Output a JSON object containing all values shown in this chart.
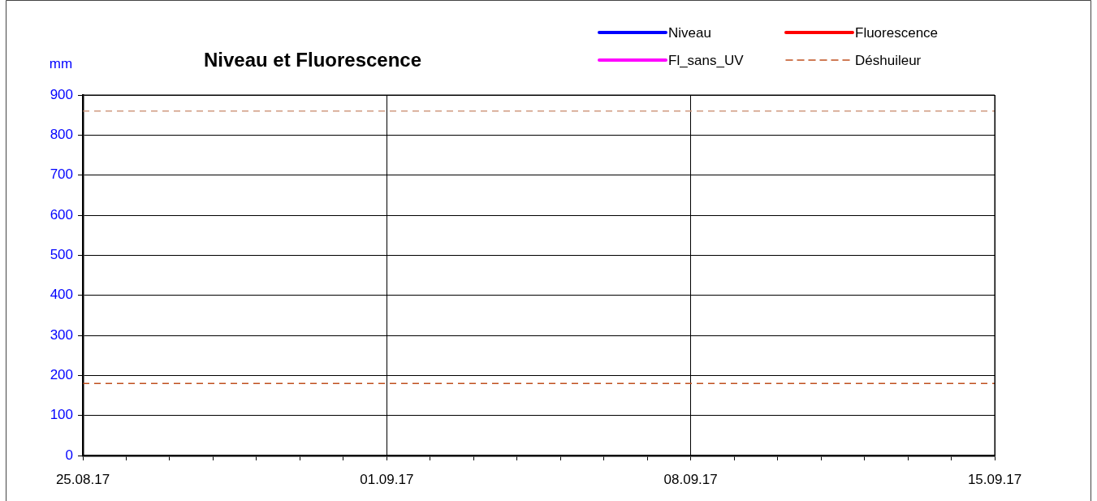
{
  "chart_data": {
    "type": "line",
    "title": "Niveau et Fluorescence",
    "ylabel": "mm",
    "x": [
      "--08-25",
      "--09-15"
    ],
    "series": [
      {
        "name": "Niveau",
        "color": "#0000ff",
        "values": [
          null,
          null
        ]
      },
      {
        "name": "Fluorescence",
        "color": "#ff0000",
        "values": [
          null,
          null
        ]
      },
      {
        "name": "Fl_sans_UV",
        "color": "#ff00ff",
        "values": [
          null,
          null
        ]
      },
      {
        "name": "Déshuileur",
        "color": "#c0501f",
        "line_style": "dashed",
        "values": [
          180,
          180
        ]
      }
    ],
    "ref_lines": [
      {
        "axis": "y",
        "value": 860,
        "color": "#d09a80",
        "line_style": "dashed"
      }
    ],
    "xlim": [
      "--08-25",
      "--09-15"
    ],
    "xticks": [
      {
        "value": "--08-25",
        "label": "25.08.17"
      },
      {
        "value": "--08-26",
        "label": null
      },
      {
        "value": "--08-27",
        "label": null
      },
      {
        "value": "--08-28",
        "label": null
      },
      {
        "value": "--08-29",
        "label": null
      },
      {
        "value": "--08-30",
        "label": null
      },
      {
        "value": "--08-31",
        "label": null
      },
      {
        "value": "--09-01",
        "label": "01.09.17"
      },
      {
        "value": "--09-02",
        "label": null
      },
      {
        "value": "--09-03",
        "label": null
      },
      {
        "value": "--09-04",
        "label": null
      },
      {
        "value": "--09-05",
        "label": null
      },
      {
        "value": "--09-06",
        "label": null
      },
      {
        "value": "--09-07",
        "label": null
      },
      {
        "value": "--09-08",
        "label": "08.09.17"
      },
      {
        "value": "--09-09",
        "label": null
      },
      {
        "value": "--09-10",
        "label": null
      },
      {
        "value": "--09-11",
        "label": null
      },
      {
        "value": "--09-12",
        "label": null
      },
      {
        "value": "--09-13",
        "label": null
      },
      {
        "value": "--09-14",
        "label": null
      },
      {
        "value": "--09-15",
        "label": "15.09.17"
      }
    ],
    "ylim": [
      0,
      900
    ],
    "yticks": [
      0,
      100,
      200,
      300,
      400,
      500,
      600,
      700,
      800,
      900
    ],
    "grid": true,
    "legend": "top right"
  }
}
